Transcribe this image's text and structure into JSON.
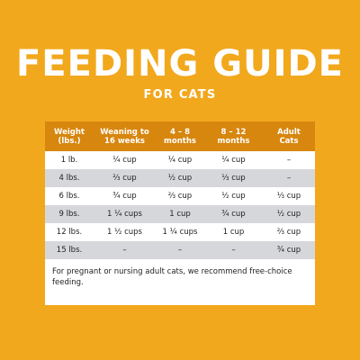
{
  "title": "FEEDING GUIDE",
  "subtitle": "FOR CATS",
  "table": {
    "headers": [
      [
        "Weight",
        "(lbs.)"
      ],
      [
        "Weaning to",
        "16 weeks"
      ],
      [
        "4 – 8",
        "months"
      ],
      [
        "8 – 12",
        "months"
      ],
      [
        "Adult",
        "Cats"
      ]
    ],
    "rows": [
      [
        "1 lb.",
        "¼ cup",
        "¼ cup",
        "¼ cup",
        "–"
      ],
      [
        "4 lbs.",
        "⅔ cup",
        "½ cup",
        "⅓ cup",
        "–"
      ],
      [
        "6 lbs.",
        "¾ cup",
        "⅔ cup",
        "½ cup",
        "⅓ cup"
      ],
      [
        "9 lbs.",
        "1 ¼ cups",
        "1 cup",
        "¾ cup",
        "½ cup"
      ],
      [
        "12 lbs.",
        "1 ½ cups",
        "1 ¼ cups",
        "1 cup",
        "⅔ cup"
      ],
      [
        "15 lbs.",
        "–",
        "–",
        "–",
        "¾ cup"
      ]
    ]
  },
  "note": "For pregnant or nursing adult cats, we recommend free-choice feeding.",
  "colors": {
    "background": "#F2A81D",
    "header": "#D7860E",
    "shaded_row": "#D6D7DA"
  }
}
